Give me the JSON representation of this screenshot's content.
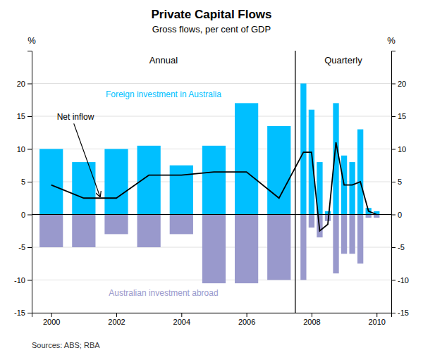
{
  "chart_data": {
    "type": "bar",
    "title": "Private Capital Flows",
    "subtitle": "Gross flows, per cent of GDP",
    "ylabel": "%",
    "y2label": "%",
    "source": "Sources: ABS; RBA",
    "x": [
      2000,
      2001,
      2002,
      2003,
      2004,
      2005,
      2006,
      2007,
      2007.75,
      2008.0,
      2008.25,
      2008.5,
      2008.75,
      2009.0,
      2009.25,
      2009.5,
      2009.75,
      2010.0
    ],
    "series": [
      {
        "name": "Foreign investment in Australia",
        "type": "bar",
        "color": "#00BFFF",
        "values": [
          10.0,
          8.0,
          10.0,
          10.5,
          7.5,
          10.5,
          17.0,
          13.5,
          20.0,
          16.0,
          8.0,
          0.5,
          17.0,
          9.0,
          8.0,
          13.0,
          1.0,
          0.5
        ]
      },
      {
        "name": "Australian investment abroad",
        "type": "bar",
        "color": "#9999CC",
        "values": [
          -5.0,
          -5.0,
          -3.0,
          -5.0,
          -3.0,
          -10.5,
          -10.5,
          -10.0,
          -10.0,
          -2.0,
          -3.5,
          -1.0,
          -9.0,
          -6.0,
          -6.0,
          -7.5,
          -0.5,
          -0.5
        ]
      },
      {
        "name": "Net inflow",
        "type": "line",
        "color": "#000000",
        "values": [
          4.5,
          2.5,
          2.5,
          6.0,
          6.0,
          6.5,
          6.5,
          2.5,
          9.5,
          9.5,
          -2.5,
          -1.5,
          11.0,
          4.5,
          4.5,
          5.0,
          0.5,
          0.0
        ]
      }
    ],
    "divider_x": 2007.5,
    "annotations": [
      {
        "text": "Annual"
      },
      {
        "text": "Quarterly"
      }
    ],
    "xlim": [
      1999.4,
      2010.45
    ],
    "xticks": [
      2000,
      2002,
      2004,
      2006,
      2008,
      2010
    ],
    "ylim": [
      -15,
      25
    ],
    "yticks": [
      -15,
      -10,
      -5,
      0,
      5,
      10,
      15,
      20
    ],
    "y2lim": [
      -15,
      25
    ],
    "y2ticks": [
      -15,
      -10,
      -5,
      0,
      5,
      10,
      15,
      20
    ],
    "grid": true
  }
}
